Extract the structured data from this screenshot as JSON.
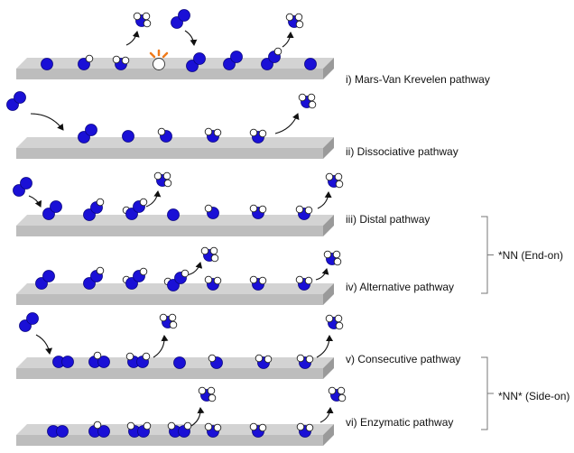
{
  "pathways": [
    {
      "label": "i) Mars-Van Krevelen pathway"
    },
    {
      "label": "ii) Dissociative pathway"
    },
    {
      "label": "iii) Distal pathway"
    },
    {
      "label": "iv) Alternative pathway"
    },
    {
      "label": "v) Consecutive pathway"
    },
    {
      "label": "vi) Enzymatic pathway"
    }
  ],
  "groups": [
    {
      "label": "*NN (End-on)"
    },
    {
      "label": "*NN* (Side-on)"
    }
  ],
  "colors": {
    "nitrogen": "#1a10d6",
    "hydrogen": "#ffffff",
    "surface_top": "#d3d3d3",
    "surface_side": "#9a9a9a",
    "vacancy_spark": "#f07a1a",
    "arrow": "#111111"
  }
}
